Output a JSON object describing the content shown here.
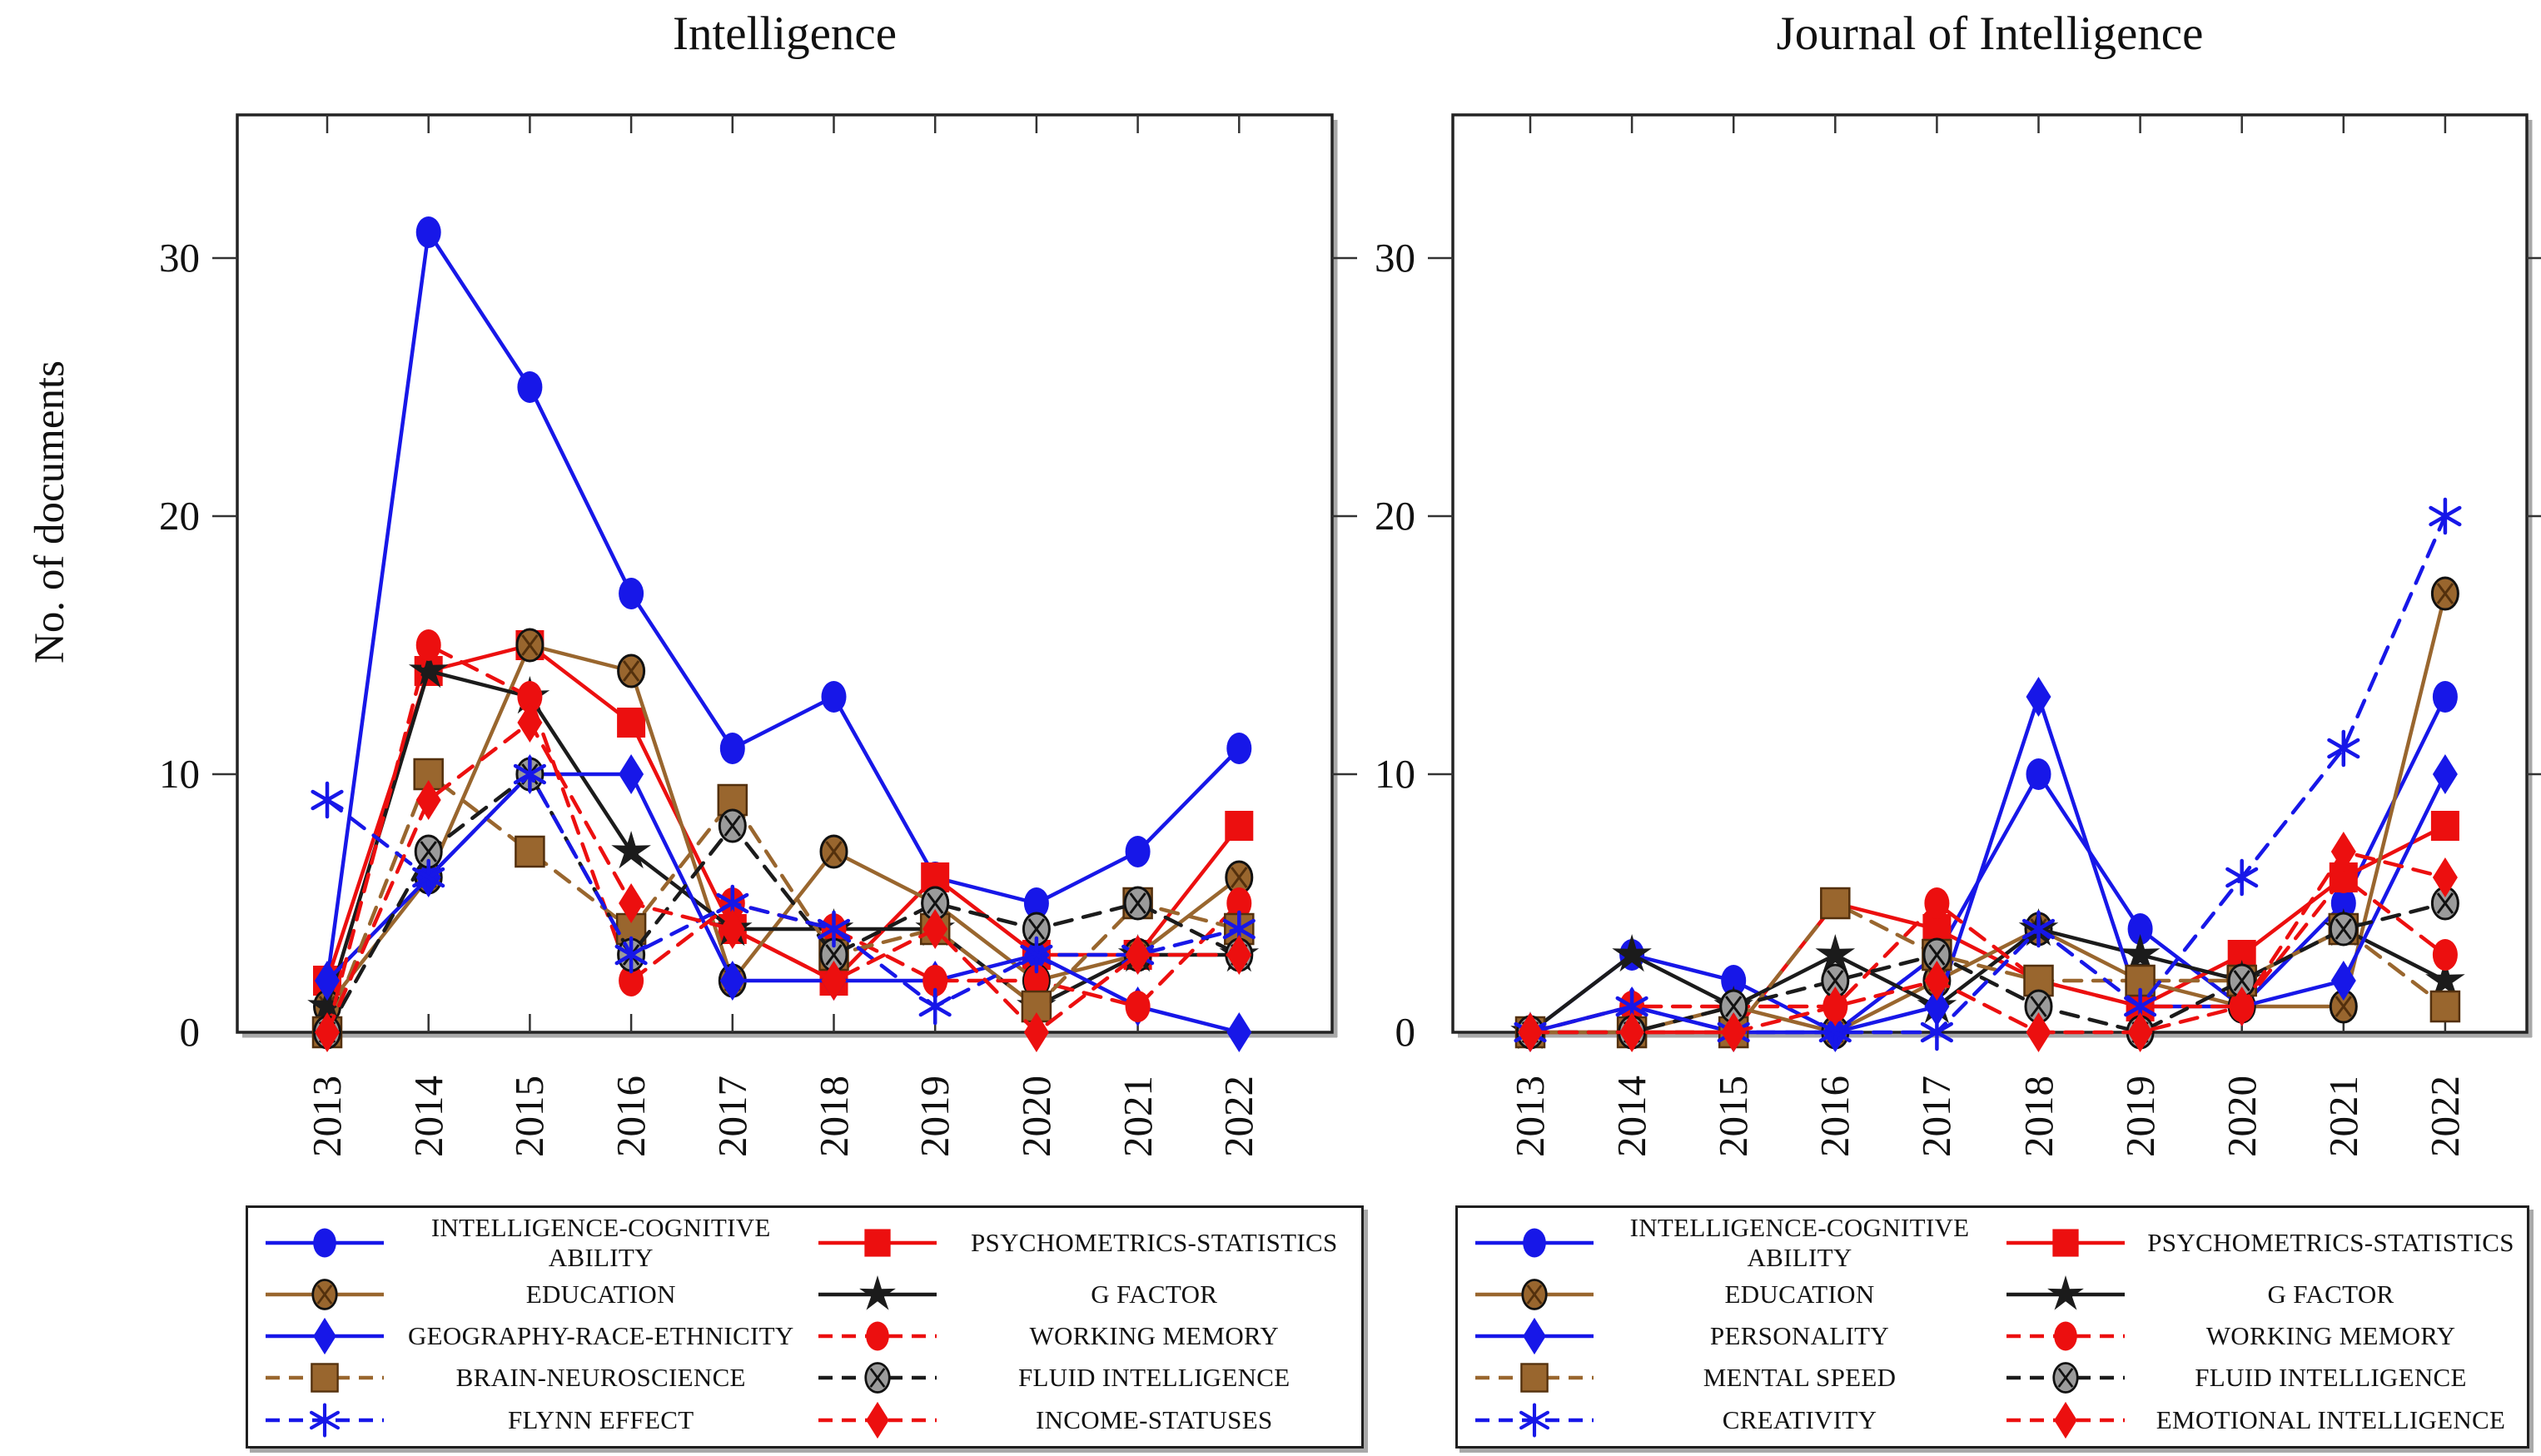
{
  "page": {
    "y_axis_label": "No. of documents",
    "background": "#ffffff"
  },
  "palette": {
    "blue": "#1717e8",
    "red": "#ec0f0f",
    "brown": "#99662e",
    "brown_dark": "#53300d",
    "black": "#1b1b1b",
    "gray_fill": "#9b9b9b"
  },
  "chart_data": [
    {
      "type": "line",
      "title": "Intelligence",
      "xlabel": "",
      "ylabel": "No. of documents",
      "x": [
        "2013",
        "2014",
        "2015",
        "2016",
        "2017",
        "2018",
        "2019",
        "2020",
        "2021",
        "2022"
      ],
      "ylim": [
        0,
        35
      ],
      "yticks": [
        0,
        10,
        20,
        30
      ],
      "grid": false,
      "legend_position": "bottom",
      "series": [
        {
          "name": "INTELLIGENCE-COGNITIVE ABILITY",
          "color": "blue",
          "marker": "circle",
          "line": "solid",
          "values": [
            2,
            31,
            25,
            17,
            11,
            13,
            6,
            5,
            7,
            11
          ]
        },
        {
          "name": "PSYCHOMETRICS-STATISTICS",
          "color": "red",
          "marker": "square",
          "line": "solid",
          "values": [
            2,
            14,
            15,
            12,
            4,
            2,
            6,
            3,
            3,
            8
          ]
        },
        {
          "name": "EDUCATION",
          "color": "brown",
          "marker": "crossed-circle",
          "line": "solid",
          "values": [
            1,
            6,
            15,
            14,
            2,
            7,
            5,
            2,
            3,
            6
          ]
        },
        {
          "name": "G FACTOR",
          "color": "black",
          "marker": "star",
          "line": "solid",
          "values": [
            1,
            14,
            13,
            7,
            4,
            4,
            4,
            1,
            3,
            3
          ]
        },
        {
          "name": "GEOGRAPHY-RACE-ETHNICITY",
          "color": "blue",
          "marker": "diamond",
          "line": "solid",
          "values": [
            2,
            6,
            10,
            10,
            2,
            2,
            2,
            3,
            1,
            0
          ]
        },
        {
          "name": "WORKING MEMORY",
          "color": "red",
          "marker": "circle",
          "line": "dashed",
          "values": [
            0,
            15,
            13,
            2,
            5,
            4,
            2,
            2,
            1,
            5
          ]
        },
        {
          "name": "BRAIN-NEUROSCIENCE",
          "color": "brown",
          "marker": "square",
          "line": "dashed",
          "values": [
            0,
            10,
            7,
            4,
            9,
            3,
            4,
            1,
            5,
            4
          ]
        },
        {
          "name": "FLUID INTELLIGENCE",
          "color": "black",
          "marker": "crossed-circle",
          "line": "dashed",
          "values": [
            0,
            7,
            10,
            3,
            8,
            3,
            5,
            4,
            5,
            3
          ]
        },
        {
          "name": "FLYNN EFFECT",
          "color": "blue",
          "marker": "asterisk",
          "line": "dashed",
          "values": [
            9,
            6,
            10,
            3,
            5,
            4,
            1,
            3,
            3,
            4
          ]
        },
        {
          "name": "INCOME-STATUSES",
          "color": "red",
          "marker": "diamond",
          "line": "dashed",
          "values": [
            0,
            9,
            12,
            5,
            4,
            2,
            4,
            0,
            3,
            3
          ]
        }
      ]
    },
    {
      "type": "line",
      "title": "Journal of Intelligence",
      "xlabel": "",
      "ylabel": "No. of documents",
      "x": [
        "2013",
        "2014",
        "2015",
        "2016",
        "2017",
        "2018",
        "2019",
        "2020",
        "2021",
        "2022"
      ],
      "ylim": [
        0,
        35
      ],
      "yticks": [
        0,
        10,
        20,
        30
      ],
      "grid": false,
      "legend_position": "bottom",
      "series": [
        {
          "name": "INTELLIGENCE-COGNITIVE ABILITY",
          "color": "blue",
          "marker": "circle",
          "line": "solid",
          "values": [
            0,
            3,
            2,
            0,
            3,
            10,
            4,
            1,
            5,
            13
          ]
        },
        {
          "name": "PSYCHOMETRICS-STATISTICS",
          "color": "red",
          "marker": "square",
          "line": "solid",
          "values": [
            0,
            0,
            0,
            5,
            4,
            2,
            1,
            3,
            6,
            8
          ]
        },
        {
          "name": "EDUCATION",
          "color": "brown",
          "marker": "crossed-circle",
          "line": "solid",
          "values": [
            0,
            0,
            1,
            0,
            2,
            4,
            2,
            1,
            1,
            17
          ]
        },
        {
          "name": "G FACTOR",
          "color": "black",
          "marker": "star",
          "line": "solid",
          "values": [
            0,
            3,
            1,
            3,
            1,
            4,
            3,
            2,
            4,
            2
          ]
        },
        {
          "name": "PERSONALITY",
          "color": "blue",
          "marker": "diamond",
          "line": "solid",
          "values": [
            0,
            1,
            0,
            0,
            1,
            13,
            1,
            1,
            2,
            10
          ]
        },
        {
          "name": "WORKING MEMORY",
          "color": "red",
          "marker": "circle",
          "line": "dashed",
          "values": [
            0,
            1,
            1,
            1,
            5,
            2,
            1,
            1,
            6,
            3
          ]
        },
        {
          "name": "MENTAL SPEED",
          "color": "brown",
          "marker": "square",
          "line": "dashed",
          "values": [
            0,
            0,
            0,
            5,
            3,
            2,
            2,
            2,
            4,
            1
          ]
        },
        {
          "name": "FLUID INTELLIGENCE",
          "color": "black",
          "marker": "crossed-circle",
          "line": "dashed",
          "values": [
            0,
            0,
            1,
            2,
            3,
            1,
            0,
            2,
            4,
            5
          ]
        },
        {
          "name": "CREATIVITY",
          "color": "blue",
          "marker": "asterisk",
          "line": "dashed",
          "values": [
            0,
            1,
            0,
            0,
            0,
            4,
            1,
            6,
            11,
            20
          ]
        },
        {
          "name": "EMOTIONAL INTELLIGENCE",
          "color": "red",
          "marker": "diamond",
          "line": "dashed",
          "values": [
            0,
            0,
            0,
            1,
            2,
            0,
            0,
            1,
            7,
            6
          ]
        }
      ]
    }
  ]
}
